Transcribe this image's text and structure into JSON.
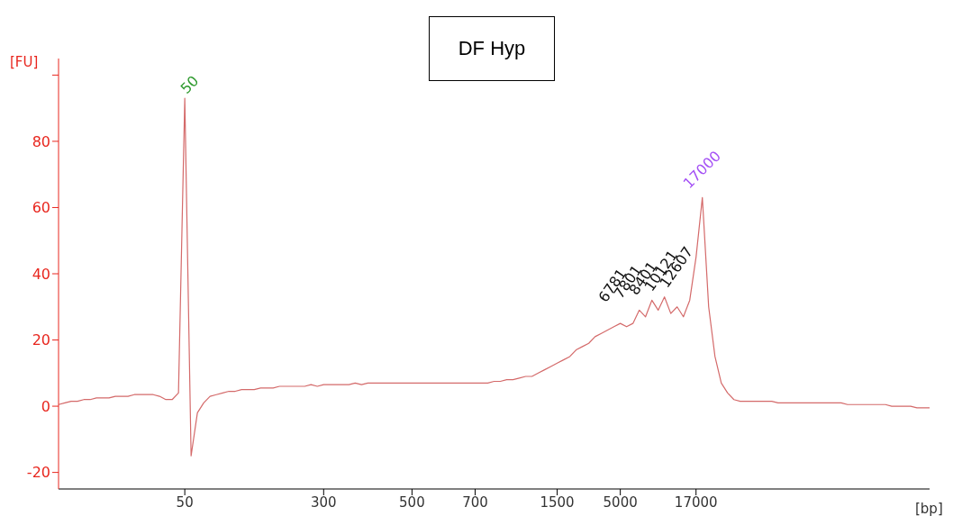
{
  "chart_data": {
    "type": "line",
    "title": "DF Hyp",
    "ylabel": "[FU]",
    "xlabel": "[bp]",
    "categories": [
      null,
      null,
      null,
      null,
      null,
      null,
      null,
      null,
      null,
      null,
      null,
      null,
      null,
      null,
      null,
      null,
      null,
      null,
      null,
      null,
      "50",
      null,
      null,
      null,
      null,
      null,
      null,
      null,
      null,
      null,
      null,
      null,
      null,
      null,
      null,
      null,
      null,
      null,
      null,
      null,
      null,
      null,
      "300",
      null,
      null,
      null,
      null,
      null,
      null,
      null,
      null,
      null,
      null,
      null,
      null,
      null,
      "500",
      null,
      null,
      null,
      null,
      null,
      null,
      null,
      null,
      null,
      "700",
      null,
      null,
      null,
      null,
      null,
      null,
      null,
      null,
      null,
      null,
      null,
      null,
      "1500",
      null,
      null,
      null,
      null,
      null,
      null,
      null,
      null,
      null,
      "5000",
      null,
      null,
      null,
      null,
      null,
      null,
      null,
      null,
      null,
      null,
      null,
      "17000",
      null,
      null,
      null,
      null,
      null,
      null,
      null,
      null,
      null,
      null,
      null,
      null,
      null,
      null,
      null,
      null,
      null,
      null,
      null,
      null,
      null,
      null,
      null,
      null,
      null,
      null,
      null,
      null,
      null,
      null,
      null,
      null,
      null,
      null,
      null,
      null,
      null
    ],
    "series": [
      {
        "color": "#d46a6a",
        "values": [
          0.5,
          1,
          1.5,
          1.5,
          2,
          2,
          2.5,
          2.5,
          2.5,
          3,
          3,
          3,
          3.5,
          3.5,
          3.5,
          3.5,
          3,
          2,
          2,
          4,
          93,
          -15,
          -2,
          1,
          3,
          3.5,
          4,
          4.5,
          4.5,
          5,
          5,
          5,
          5.5,
          5.5,
          5.5,
          6,
          6,
          6,
          6,
          6,
          6.5,
          6,
          6.5,
          6.5,
          6.5,
          6.5,
          6.5,
          7,
          6.5,
          7,
          7,
          7,
          7,
          7,
          7,
          7,
          7,
          7,
          7,
          7,
          7,
          7,
          7,
          7,
          7,
          7,
          7,
          7,
          7,
          7.5,
          7.5,
          8,
          8,
          8.5,
          9,
          9,
          10,
          11,
          12,
          13,
          14,
          15,
          17,
          18,
          19,
          21,
          22,
          23,
          24,
          25,
          24,
          25,
          29,
          27,
          32,
          29,
          33,
          28,
          30,
          27,
          32,
          45,
          63,
          30,
          15,
          7,
          4,
          2,
          1.5,
          1.5,
          1.5,
          1.5,
          1.5,
          1.5,
          1,
          1,
          1,
          1,
          1,
          1,
          1,
          1,
          1,
          1,
          1,
          0.5,
          0.5,
          0.5,
          0.5,
          0.5,
          0.5,
          0.5,
          0,
          0,
          0,
          0,
          -0.5,
          -0.5,
          -0.5
        ]
      }
    ],
    "ylim": [
      -25,
      105
    ],
    "yticks": [
      -20,
      0,
      20,
      40,
      60,
      80,
      {
        "value": 100,
        "label": null
      }
    ],
    "grid": false,
    "legend": false,
    "marker": "none",
    "line_style": "solid",
    "annotations": [
      {
        "text": "50",
        "x": "50",
        "y": 93
      },
      "17000",
      "6781",
      "7801",
      "8401",
      "10121",
      "12607"
    ]
  }
}
